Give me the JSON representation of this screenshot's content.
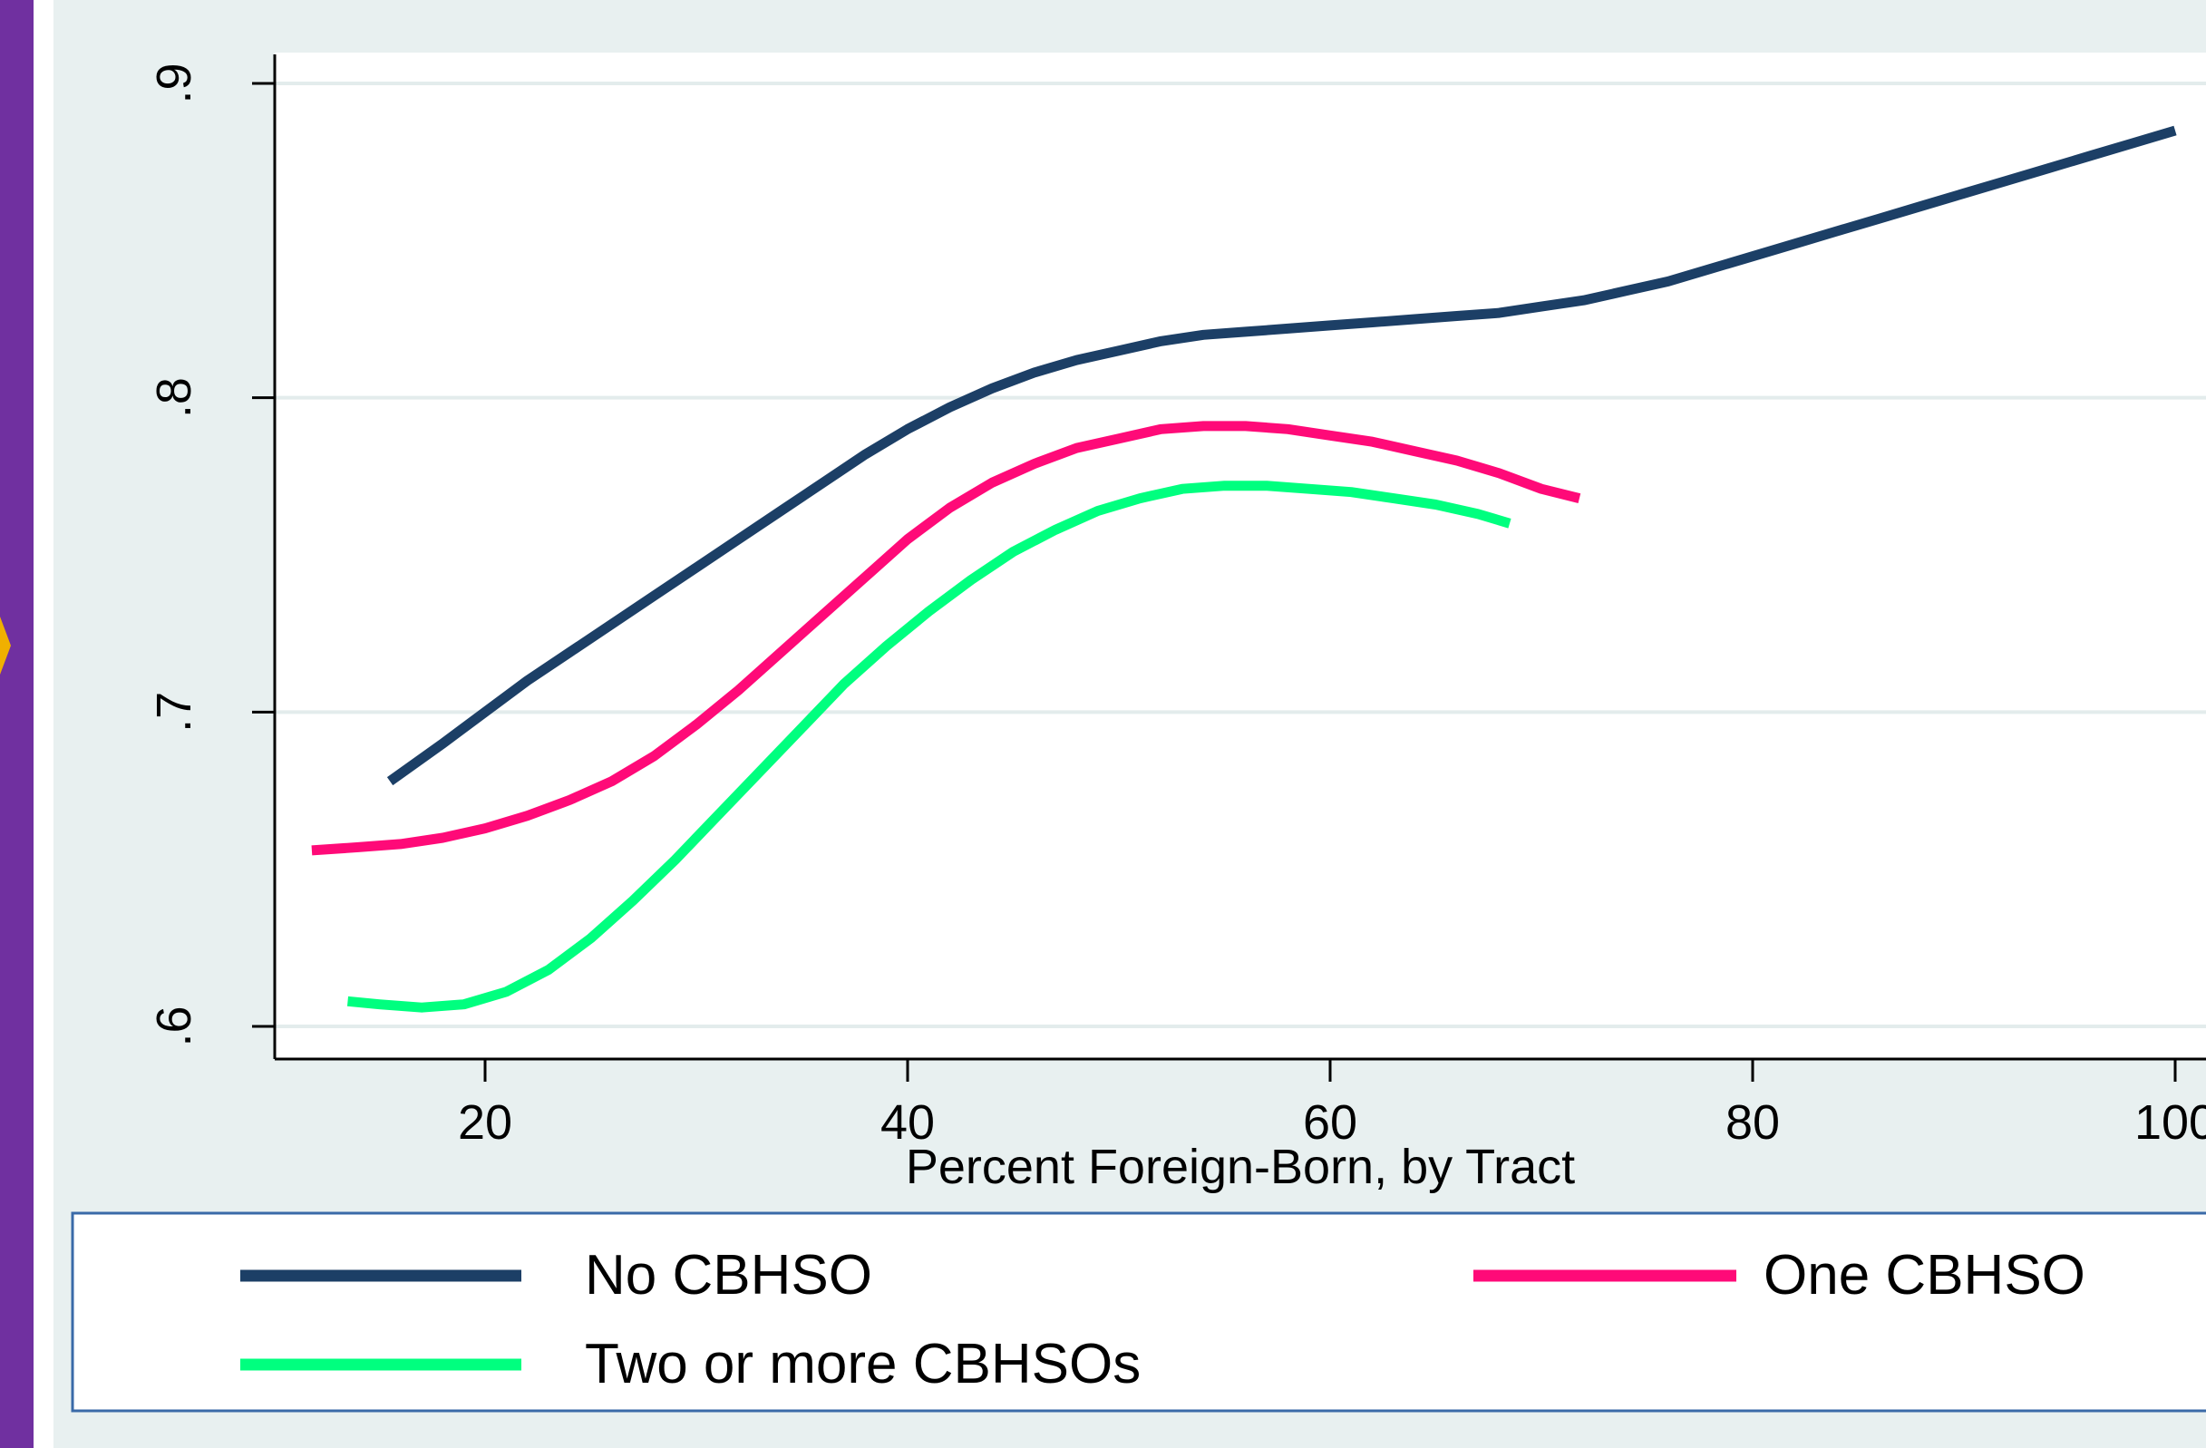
{
  "chart_data": {
    "type": "line",
    "title": "",
    "xlabel": "Percent Foreign-Born, by Tract",
    "ylabel": "",
    "xlim": [
      10,
      100
    ],
    "ylim": [
      0.6,
      0.9
    ],
    "x_ticks": [
      20,
      40,
      60,
      80,
      100
    ],
    "x_tick_labels": [
      "20",
      "40",
      "60",
      "80",
      "100"
    ],
    "y_ticks": [
      0.6,
      0.7,
      0.8,
      0.9
    ],
    "y_tick_labels": [
      ".6",
      ".7",
      ".8",
      ".9"
    ],
    "grid": "horizontal",
    "legend_position": "bottom",
    "series": [
      {
        "name": "No CBHSO",
        "color": "#1c3f66",
        "points": [
          [
            15.5,
            0.678
          ],
          [
            18,
            0.69
          ],
          [
            20,
            0.7
          ],
          [
            22,
            0.71
          ],
          [
            24,
            0.719
          ],
          [
            26,
            0.728
          ],
          [
            28,
            0.737
          ],
          [
            30,
            0.746
          ],
          [
            32,
            0.755
          ],
          [
            34,
            0.764
          ],
          [
            36,
            0.773
          ],
          [
            38,
            0.782
          ],
          [
            40,
            0.79
          ],
          [
            42,
            0.797
          ],
          [
            44,
            0.803
          ],
          [
            46,
            0.808
          ],
          [
            48,
            0.812
          ],
          [
            50,
            0.815
          ],
          [
            52,
            0.818
          ],
          [
            54,
            0.82
          ],
          [
            56,
            0.821
          ],
          [
            58,
            0.822
          ],
          [
            60,
            0.823
          ],
          [
            62,
            0.824
          ],
          [
            64,
            0.825
          ],
          [
            66,
            0.826
          ],
          [
            68,
            0.827
          ],
          [
            70,
            0.829
          ],
          [
            72,
            0.831
          ],
          [
            74,
            0.834
          ],
          [
            76,
            0.837
          ],
          [
            78,
            0.841
          ],
          [
            80,
            0.845
          ],
          [
            82,
            0.849
          ],
          [
            84,
            0.853
          ],
          [
            86,
            0.857
          ],
          [
            88,
            0.861
          ],
          [
            90,
            0.865
          ],
          [
            92,
            0.869
          ],
          [
            94,
            0.873
          ],
          [
            96,
            0.877
          ],
          [
            98,
            0.881
          ],
          [
            100,
            0.885
          ]
        ]
      },
      {
        "name": "One CBHSO",
        "color": "#ff0a78",
        "points": [
          [
            11.8,
            0.656
          ],
          [
            14,
            0.657
          ],
          [
            16,
            0.658
          ],
          [
            18,
            0.66
          ],
          [
            20,
            0.663
          ],
          [
            22,
            0.667
          ],
          [
            24,
            0.672
          ],
          [
            26,
            0.678
          ],
          [
            28,
            0.686
          ],
          [
            30,
            0.696
          ],
          [
            32,
            0.707
          ],
          [
            34,
            0.719
          ],
          [
            36,
            0.731
          ],
          [
            38,
            0.743
          ],
          [
            40,
            0.755
          ],
          [
            42,
            0.765
          ],
          [
            44,
            0.773
          ],
          [
            46,
            0.779
          ],
          [
            48,
            0.784
          ],
          [
            50,
            0.787
          ],
          [
            52,
            0.79
          ],
          [
            54,
            0.791
          ],
          [
            56,
            0.791
          ],
          [
            58,
            0.79
          ],
          [
            60,
            0.788
          ],
          [
            62,
            0.786
          ],
          [
            64,
            0.783
          ],
          [
            66,
            0.78
          ],
          [
            68,
            0.776
          ],
          [
            70,
            0.771
          ],
          [
            71.8,
            0.768
          ]
        ]
      },
      {
        "name": "Two or more CBHSOs",
        "color": "#00ff7f",
        "points": [
          [
            13.5,
            0.608
          ],
          [
            15,
            0.607
          ],
          [
            17,
            0.606
          ],
          [
            19,
            0.607
          ],
          [
            21,
            0.611
          ],
          [
            23,
            0.618
          ],
          [
            25,
            0.628
          ],
          [
            27,
            0.64
          ],
          [
            29,
            0.653
          ],
          [
            31,
            0.667
          ],
          [
            33,
            0.681
          ],
          [
            35,
            0.695
          ],
          [
            37,
            0.709
          ],
          [
            39,
            0.721
          ],
          [
            41,
            0.732
          ],
          [
            43,
            0.742
          ],
          [
            45,
            0.751
          ],
          [
            47,
            0.758
          ],
          [
            49,
            0.764
          ],
          [
            51,
            0.768
          ],
          [
            53,
            0.771
          ],
          [
            55,
            0.772
          ],
          [
            57,
            0.772
          ],
          [
            59,
            0.771
          ],
          [
            61,
            0.77
          ],
          [
            63,
            0.768
          ],
          [
            65,
            0.766
          ],
          [
            67,
            0.763
          ],
          [
            68.5,
            0.76
          ]
        ]
      }
    ]
  }
}
